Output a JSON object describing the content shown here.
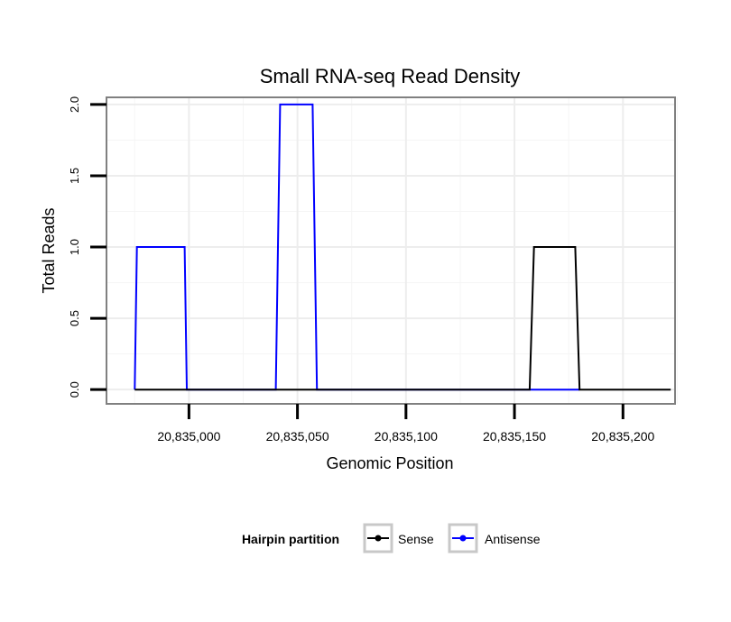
{
  "chart_data": {
    "type": "line",
    "title": "Small RNA-seq Read Density",
    "xlabel": "Genomic Position",
    "ylabel": "Total Reads",
    "xlim": [
      20834962,
      20835224
    ],
    "ylim": [
      -0.1,
      2.05
    ],
    "x_ticks": [
      20835000,
      20835050,
      20835100,
      20835150,
      20835200
    ],
    "x_tick_labels": [
      "20,835,000",
      "20,835,050",
      "20,835,100",
      "20,835,150",
      "20,835,200"
    ],
    "y_ticks": [
      0.0,
      0.5,
      1.0,
      1.5,
      2.0
    ],
    "y_tick_labels": [
      "0.0",
      "0.5",
      "1.0",
      "1.5",
      "2.0"
    ],
    "grid": true,
    "legend": {
      "title": "Hairpin partition",
      "position": "bottom",
      "entries": [
        {
          "name": "Sense",
          "color": "#000000"
        },
        {
          "name": "Antisense",
          "color": "#0000ff"
        }
      ]
    },
    "series": [
      {
        "name": "Antisense",
        "color": "#0000ff",
        "x": [
          20834975,
          20834976,
          20834998,
          20834999,
          20835040,
          20835042,
          20835057,
          20835059,
          20835157,
          20835180
        ],
        "y": [
          0,
          1,
          1,
          0,
          0,
          2,
          2,
          0,
          0,
          0
        ]
      },
      {
        "name": "Sense",
        "color": "#000000",
        "x": [
          20834975,
          20835157,
          20835159,
          20835178,
          20835180,
          20835222
        ],
        "y": [
          0,
          0,
          1,
          1,
          0,
          0
        ]
      }
    ]
  }
}
